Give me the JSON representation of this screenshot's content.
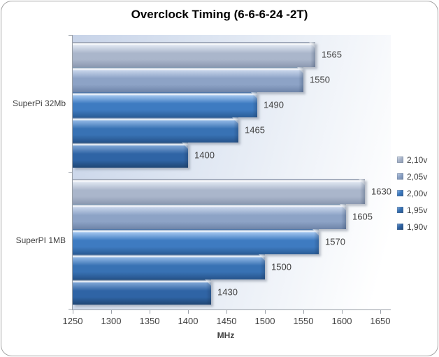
{
  "colors": {
    "axis": "#9aa0a8",
    "text": "#3f3f3f",
    "title": "#000000",
    "frame_border": "#a3a3a3",
    "plot_bg_left": "#c7d3e8",
    "plot_bg_right": "#ffffff"
  },
  "chart_data": {
    "type": "bar",
    "orientation": "horizontal",
    "title": "Overclock Timing (6-6-6-24 -2T)",
    "xlabel": "MHz",
    "ylabel": "",
    "xlim": [
      1250,
      1650
    ],
    "x_ticks": [
      1250,
      1300,
      1350,
      1400,
      1450,
      1500,
      1550,
      1600,
      1650
    ],
    "grid": false,
    "data_labels": true,
    "legend_position": "right",
    "categories": [
      "SuperPi 32Mb",
      "SuperPI 1MB"
    ],
    "series": [
      {
        "name": "2,10v",
        "values": [
          1565,
          1630
        ],
        "edge": "#7d8aa2",
        "light": "#dde4ef",
        "base": "#aab6cb",
        "dark": "#8c99b1"
      },
      {
        "name": "2,05v",
        "values": [
          1550,
          1605
        ],
        "edge": "#64809f",
        "light": "#c5d3e9",
        "base": "#8da3c6",
        "dark": "#6e84a8"
      },
      {
        "name": "2,00v",
        "values": [
          1490,
          1570
        ],
        "edge": "#2c5c97",
        "light": "#9dc2ed",
        "base": "#3e7bc1",
        "dark": "#2a5c96"
      },
      {
        "name": "1,95v",
        "values": [
          1465,
          1500
        ],
        "edge": "#26538a",
        "light": "#8db4e2",
        "base": "#3872b4",
        "dark": "#26538a"
      },
      {
        "name": "1,90v",
        "values": [
          1400,
          1430
        ],
        "edge": "#1f4674",
        "light": "#7ba3d3",
        "base": "#2f64a5",
        "dark": "#1f4674"
      }
    ]
  }
}
